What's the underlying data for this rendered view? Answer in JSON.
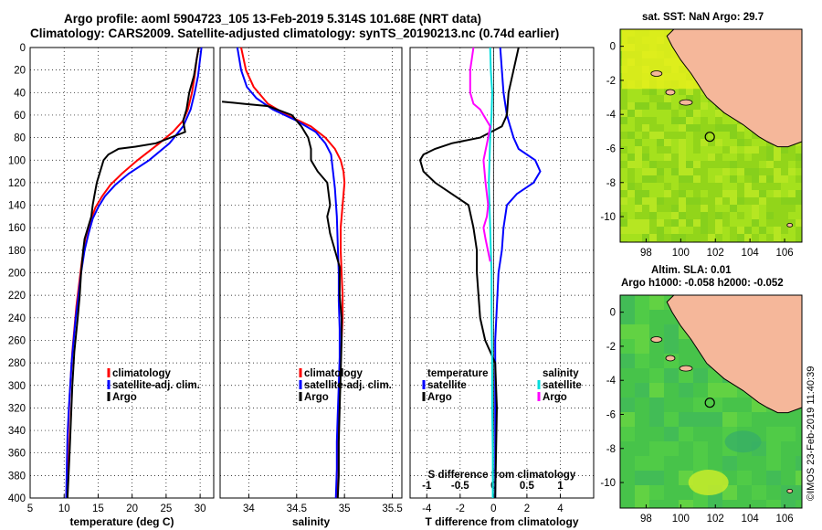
{
  "page": {
    "title_line1": "Argo profile: aoml 5904723_105 13-Feb-2019 5.314S 101.68E (NRT data)",
    "title_line2": "Climatology: CARS2009. Satellite-adjusted climatology: synTS_20190213.nc (0.74d earlier)",
    "credit": "©IMOS 23-Feb-2019 11:40:39"
  },
  "colors": {
    "climatology": "#ff0000",
    "satellite": "#0000ff",
    "argo": "#000000",
    "sal_satellite": "#00dddd",
    "sal_argo": "#ff00ff",
    "land": "#f5b79a",
    "sst_bg": "#9bdb1c",
    "sla_bg": "#4cc84c"
  },
  "chart_data": [
    {
      "type": "line",
      "name": "temperature",
      "xlabel": "temperature (deg C)",
      "xlim": [
        5,
        32
      ],
      "xticks": [
        5,
        10,
        15,
        20,
        25,
        30
      ],
      "ylim": [
        0,
        400
      ],
      "yticks": [
        0,
        20,
        40,
        60,
        80,
        100,
        120,
        140,
        160,
        180,
        200,
        220,
        240,
        260,
        280,
        300,
        320,
        340,
        360,
        380,
        400
      ],
      "legend": [
        "climatology",
        "satellite-adj. clim.",
        "Argo"
      ],
      "series": [
        {
          "name": "climatology",
          "color": "#ff0000",
          "x": [
            29.8,
            29.5,
            29.2,
            28.8,
            28.2,
            27.5,
            26.0,
            24.0,
            20.8,
            18.5,
            16.8,
            15.6,
            14.6,
            13.8,
            13.1,
            12.6,
            12.2,
            11.8,
            11.5,
            11.2,
            11.0,
            10.8,
            10.6,
            10.5,
            10.3
          ],
          "y": [
            0,
            10,
            25,
            40,
            55,
            65,
            75,
            85,
            100,
            112,
            122,
            132,
            142,
            155,
            170,
            190,
            210,
            230,
            250,
            270,
            290,
            310,
            340,
            370,
            400
          ]
        },
        {
          "name": "satellite-adj. clim.",
          "color": "#0000ff",
          "x": [
            30.2,
            30.0,
            29.7,
            29.2,
            28.6,
            27.5,
            25.5,
            22.5,
            19.5,
            17.5,
            16.0,
            15.0,
            14.2,
            13.6,
            13.0,
            12.5,
            12.1,
            11.7,
            11.4,
            11.1,
            10.9,
            10.7,
            10.5,
            10.4,
            10.3
          ],
          "y": [
            0,
            10,
            25,
            40,
            55,
            70,
            85,
            100,
            112,
            122,
            132,
            142,
            152,
            165,
            180,
            200,
            220,
            240,
            260,
            280,
            300,
            320,
            345,
            370,
            400
          ]
        },
        {
          "name": "Argo",
          "color": "#000000",
          "x": [
            29.8,
            29.5,
            29.1,
            28.4,
            28.0,
            27.5,
            27.8,
            23.5,
            20.5,
            18.0,
            16.5,
            15.8,
            15.3,
            14.8,
            14.5,
            14.2,
            14.0,
            13.5,
            13.0,
            12.8,
            12.5,
            12.3,
            12.0,
            11.5,
            11.2,
            11.0,
            10.8,
            10.5
          ],
          "y": [
            0,
            10,
            25,
            40,
            55,
            65,
            75,
            85,
            88,
            90,
            95,
            100,
            110,
            120,
            130,
            140,
            150,
            160,
            170,
            180,
            200,
            220,
            240,
            270,
            300,
            330,
            360,
            400
          ]
        }
      ]
    },
    {
      "type": "line",
      "name": "salinity",
      "xlabel": "salinity",
      "xlim": [
        33.7,
        35.6
      ],
      "xticks": [
        34,
        34.5,
        35,
        35.5
      ],
      "ylim": [
        0,
        400
      ],
      "legend": [
        "climatology",
        "satellite-adj. clim.",
        "Argo"
      ],
      "series": [
        {
          "name": "climatology",
          "color": "#ff0000",
          "x": [
            33.92,
            33.97,
            34.05,
            34.2,
            34.4,
            34.65,
            34.8,
            34.9,
            34.96,
            34.99,
            35.0,
            34.98,
            34.96,
            34.96,
            34.97,
            34.98,
            34.98,
            34.97,
            34.95,
            34.94,
            34.93,
            34.92,
            34.92
          ],
          "y": [
            0,
            20,
            35,
            50,
            60,
            70,
            80,
            90,
            100,
            110,
            120,
            140,
            160,
            180,
            200,
            220,
            240,
            260,
            290,
            320,
            350,
            380,
            400
          ]
        },
        {
          "name": "satellite-adj. clim.",
          "color": "#0000ff",
          "x": [
            33.88,
            33.92,
            33.98,
            34.08,
            34.25,
            34.5,
            34.7,
            34.8,
            34.86,
            34.88,
            34.9,
            34.92,
            34.93,
            34.94,
            34.94,
            34.95,
            34.95,
            34.94,
            34.93,
            34.92,
            34.92,
            34.91
          ],
          "y": [
            0,
            20,
            35,
            45,
            55,
            65,
            75,
            85,
            95,
            110,
            125,
            150,
            175,
            200,
            225,
            250,
            275,
            300,
            325,
            350,
            375,
            400
          ]
        },
        {
          "name": "Argo",
          "color": "#000000",
          "x": [
            33.72,
            33.95,
            34.2,
            34.45,
            34.55,
            34.62,
            34.65,
            34.65,
            34.72,
            34.82,
            34.85,
            34.82,
            34.85,
            34.9,
            34.95,
            34.95,
            34.97,
            34.97,
            34.96,
            34.95,
            34.94,
            34.94,
            34.93
          ],
          "y": [
            48,
            50,
            52,
            60,
            70,
            80,
            90,
            100,
            110,
            120,
            140,
            150,
            165,
            180,
            195,
            220,
            240,
            260,
            290,
            320,
            350,
            380,
            400
          ]
        }
      ]
    },
    {
      "type": "line",
      "name": "difference",
      "xlabel": "T difference from climatology",
      "xlabel2": "S difference from climatology",
      "xlim": [
        -5,
        6
      ],
      "xticks": [
        -4,
        -2,
        0,
        2,
        4
      ],
      "xticks2": [
        -1,
        -0.5,
        0,
        0.5,
        1
      ],
      "xticklabels2": [
        "-1",
        "-0.5",
        "0",
        "0.5",
        "1"
      ],
      "ylim": [
        0,
        400
      ],
      "legend_left_title": "temperature",
      "legend_right_title": "salinity",
      "legend_left": [
        "satellite",
        "Argo"
      ],
      "legend_right": [
        "satellite",
        "Argo"
      ],
      "series": [
        {
          "name": "T satellite",
          "color": "#0000ff",
          "x": [
            0.4,
            0.5,
            0.6,
            0.8,
            1.0,
            1.2,
            1.5,
            2.5,
            2.8,
            2.4,
            1.4,
            0.8,
            0.6,
            0.5,
            0.3,
            0.2,
            0.1,
            0.1,
            0.1,
            0.1
          ],
          "y": [
            0,
            20,
            40,
            60,
            70,
            80,
            90,
            100,
            110,
            120,
            130,
            140,
            160,
            180,
            200,
            230,
            260,
            300,
            350,
            400
          ]
        },
        {
          "name": "T Argo",
          "color": "#000000",
          "x": [
            1.5,
            1.2,
            0.9,
            0.8,
            0.5,
            -0.8,
            -2.5,
            -3.5,
            -4.2,
            -4.4,
            -4.2,
            -3.5,
            -2.5,
            -1.5,
            -1.2,
            -1.0,
            -1.0,
            -0.9,
            -0.8,
            -0.5,
            0.1,
            0.2,
            0.1
          ],
          "y": [
            0,
            20,
            40,
            60,
            70,
            80,
            85,
            90,
            95,
            100,
            110,
            120,
            130,
            140,
            160,
            180,
            200,
            220,
            240,
            260,
            280,
            320,
            400
          ]
        },
        {
          "name": "S satellite",
          "color": "#00dddd",
          "x": [
            -0.05,
            -0.04,
            -0.02,
            -0.03,
            -0.05,
            -0.06,
            -0.07,
            -0.06,
            -0.05,
            -0.04,
            -0.03,
            -0.03,
            -0.02,
            -0.02,
            -0.01,
            -0.01
          ],
          "y": [
            0,
            20,
            40,
            60,
            80,
            100,
            120,
            140,
            160,
            180,
            200,
            240,
            280,
            320,
            360,
            400
          ]
        },
        {
          "name": "S Argo",
          "color": "#ff00ff",
          "x": [
            -0.3,
            -0.35,
            -0.35,
            -0.3,
            -0.2,
            -0.15,
            -0.05,
            -0.08,
            -0.15,
            -0.12,
            -0.08,
            -0.1,
            -0.15,
            -0.12,
            -0.05
          ],
          "y": [
            0,
            20,
            40,
            50,
            55,
            60,
            70,
            80,
            100,
            120,
            140,
            150,
            160,
            170,
            190
          ]
        }
      ]
    }
  ],
  "maps": {
    "sst": {
      "title": "sat. SST: NaN Argo: 29.7",
      "xticks": [
        98,
        100,
        102,
        104,
        106
      ],
      "yticks": [
        0,
        -2,
        -4,
        -6,
        -8,
        -10
      ],
      "float_lon": 101.68,
      "float_lat": -5.314
    },
    "sla": {
      "title_line1": "Altim. SLA: 0.01",
      "title_line2": "Argo h1000: -0.058 h2000: -0.052",
      "xticks": [
        98,
        100,
        102,
        104,
        106
      ],
      "yticks": [
        0,
        -2,
        -4,
        -6,
        -8,
        -10
      ],
      "float_lon": 101.68,
      "float_lat": -5.314
    }
  }
}
